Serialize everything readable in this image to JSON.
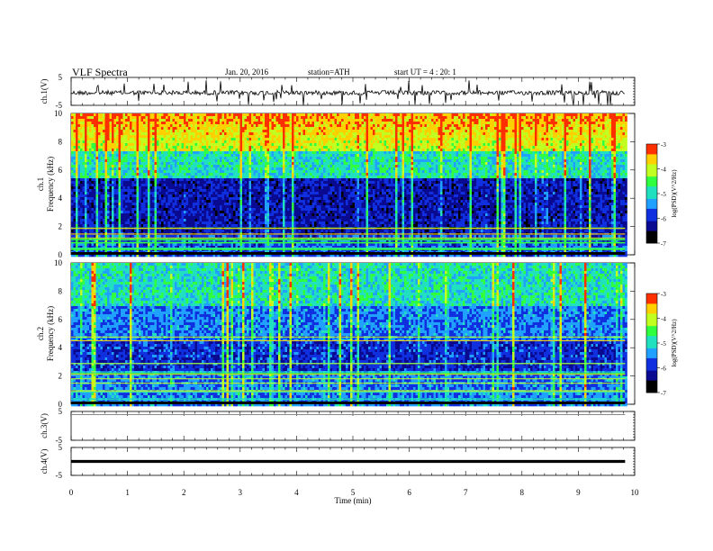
{
  "header": {
    "title": "VLF Spectra",
    "date": "Jan. 20, 2016",
    "station": "station=ATH",
    "start_ut": "start UT =  4 : 20: 1"
  },
  "colors": {
    "background": "#ffffff",
    "trace": "#000000",
    "colormap": [
      "#000000",
      "#0a0a90",
      "#1030e0",
      "#20a0ff",
      "#20e0c0",
      "#30ff40",
      "#c0ff20",
      "#ffd000",
      "#ff3000",
      "#ffffff"
    ]
  },
  "chart_data": [
    {
      "type": "line",
      "panel": "ch1-waveform",
      "ylabel": "ch.1(V)",
      "ylim": [
        -5,
        5
      ],
      "yticks": [
        "5",
        "-5"
      ],
      "xlim": [
        0,
        10
      ],
      "series": [
        {
          "x": [
            0,
            9.83
          ],
          "values": [
            -0.5,
            -0.5
          ]
        }
      ]
    },
    {
      "type": "heatmap",
      "panel": "ch1-spectrogram",
      "ylabel": [
        "ch.1",
        "Frequency (kHz)"
      ],
      "ylim": [
        0,
        10
      ],
      "yticks": [
        "0",
        "2",
        "4",
        "6",
        "8",
        "10"
      ],
      "xlim": [
        0,
        10
      ],
      "x_end": 9.83,
      "colorbar": {
        "label": "log(PSD)(V^2/Hz)",
        "range": [
          -7,
          -3
        ],
        "ticks": [
          "-3",
          "-4",
          "-5",
          "-6",
          "-7"
        ]
      }
    },
    {
      "type": "heatmap",
      "panel": "ch2-spectrogram",
      "ylabel": [
        "ch.2",
        "Frequency (kHz)"
      ],
      "ylim": [
        0,
        10
      ],
      "yticks": [
        "0",
        "2",
        "4",
        "6",
        "8",
        "10"
      ],
      "xlim": [
        0,
        10
      ],
      "x_end": 9.83,
      "colorbar": {
        "label": "log(PSD)(V^2/Hz)",
        "range": [
          -7,
          -3
        ],
        "ticks": [
          "-3",
          "-4",
          "-5",
          "-6",
          "-7"
        ]
      }
    },
    {
      "type": "line",
      "panel": "ch3-waveform",
      "ylabel": "ch.3(V)",
      "ylim": [
        -5,
        5
      ],
      "yticks": [
        "5",
        "-5"
      ],
      "xlim": [
        0,
        10
      ],
      "series": [
        {
          "x": [
            0,
            9.83
          ],
          "values": [
            3.9,
            3.9
          ]
        }
      ]
    },
    {
      "type": "line",
      "panel": "ch4-waveform",
      "ylabel": "ch.4(V)",
      "ylim": [
        -5,
        5
      ],
      "yticks": [
        "5",
        "-5"
      ],
      "xlim": [
        0,
        10
      ],
      "series": [
        {
          "x": [
            0,
            9.83
          ],
          "values": [
            0,
            0
          ]
        }
      ]
    }
  ],
  "xaxis": {
    "label": "Time (min)",
    "ticks": [
      "0",
      "1",
      "2",
      "3",
      "4",
      "5",
      "6",
      "7",
      "8",
      "9",
      "10"
    ]
  }
}
